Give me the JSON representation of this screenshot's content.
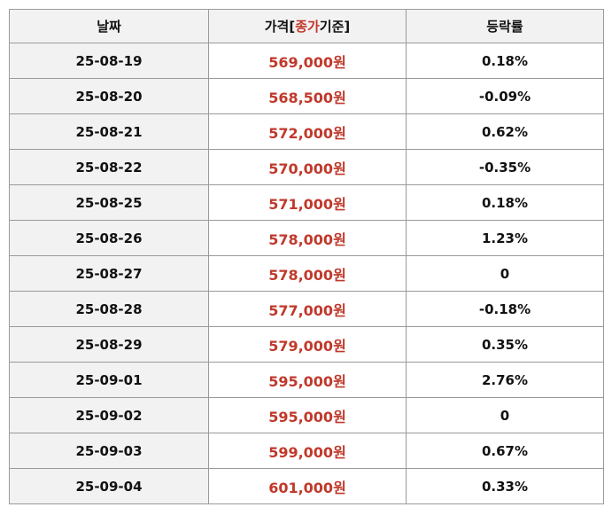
{
  "table": {
    "header": [
      "날짜",
      [
        "가격[",
        "종가",
        "기준]"
      ],
      "등락률"
    ],
    "rows": [
      [
        "25-08-19",
        "569,000원",
        "0.18%"
      ],
      [
        "25-08-20",
        "568,500원",
        "-0.09%"
      ],
      [
        "25-08-21",
        "572,000원",
        "0.62%"
      ],
      [
        "25-08-22",
        "570,000원",
        "-0.35%"
      ],
      [
        "25-08-25",
        "571,000원",
        "0.18%"
      ],
      [
        "25-08-26",
        "578,000원",
        "1.23%"
      ],
      [
        "25-08-27",
        "578,000원",
        "0"
      ],
      [
        "25-08-28",
        "577,000원",
        "-0.18%"
      ],
      [
        "25-08-29",
        "579,000원",
        "0.35%"
      ],
      [
        "25-09-01",
        "595,000원",
        "2.76%"
      ],
      [
        "25-09-02",
        "595,000원",
        "0"
      ],
      [
        "25-09-03",
        "599,000원",
        "0.67%"
      ],
      [
        "25-09-04",
        "601,000원",
        "0.33%"
      ]
    ]
  }
}
